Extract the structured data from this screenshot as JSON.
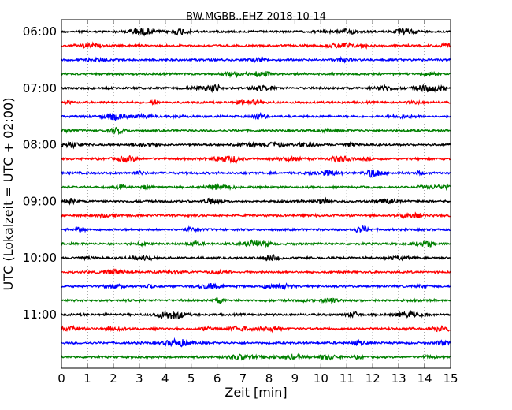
{
  "chart_data": {
    "type": "line",
    "title": "BW.MGBB..EHZ 2018-10-14",
    "xlabel": "Zeit  [min]",
    "ylabel": "UTC (Lokalzeit = UTC + 02:00)",
    "xlim": [
      0,
      15
    ],
    "x_ticks": [
      "0",
      "1",
      "2",
      "3",
      "4",
      "5",
      "6",
      "7",
      "8",
      "9",
      "10",
      "11",
      "12",
      "13",
      "14",
      "15"
    ],
    "y_tick_labels": [
      "06:00",
      "07:00",
      "08:00",
      "09:00",
      "10:00",
      "11:00"
    ],
    "trace_colors": [
      "#000000",
      "#ff0000",
      "#0000ff",
      "#008000"
    ],
    "grid": "vertical dotted",
    "traces": [
      {
        "start": "06:00",
        "color": "#000000"
      },
      {
        "start": "06:15",
        "color": "#ff0000"
      },
      {
        "start": "06:30",
        "color": "#0000ff"
      },
      {
        "start": "06:45",
        "color": "#008000"
      },
      {
        "start": "07:00",
        "color": "#000000"
      },
      {
        "start": "07:15",
        "color": "#ff0000"
      },
      {
        "start": "07:30",
        "color": "#0000ff"
      },
      {
        "start": "07:45",
        "color": "#008000"
      },
      {
        "start": "08:00",
        "color": "#000000"
      },
      {
        "start": "08:15",
        "color": "#ff0000"
      },
      {
        "start": "08:30",
        "color": "#0000ff"
      },
      {
        "start": "08:45",
        "color": "#008000"
      },
      {
        "start": "09:00",
        "color": "#000000"
      },
      {
        "start": "09:15",
        "color": "#ff0000"
      },
      {
        "start": "09:30",
        "color": "#0000ff"
      },
      {
        "start": "09:45",
        "color": "#008000"
      },
      {
        "start": "10:00",
        "color": "#000000"
      },
      {
        "start": "10:15",
        "color": "#ff0000"
      },
      {
        "start": "10:30",
        "color": "#0000ff"
      },
      {
        "start": "10:45",
        "color": "#008000"
      },
      {
        "start": "11:00",
        "color": "#000000"
      },
      {
        "start": "11:15",
        "color": "#ff0000"
      },
      {
        "start": "11:30",
        "color": "#0000ff"
      },
      {
        "start": "11:45",
        "color": "#008000"
      }
    ]
  }
}
